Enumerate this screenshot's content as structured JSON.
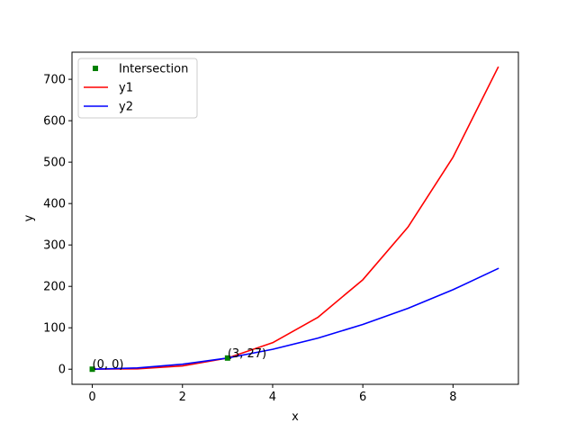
{
  "chart_data": {
    "type": "line",
    "title": "",
    "xlabel": "x",
    "ylabel": "y",
    "xlim": [
      -0.45,
      9.45
    ],
    "ylim": [
      -36.45,
      765.45
    ],
    "xticks": [
      0,
      2,
      4,
      6,
      8
    ],
    "yticks": [
      0,
      100,
      200,
      300,
      400,
      500,
      600,
      700
    ],
    "grid": false,
    "legend_position": "top-left",
    "x": [
      0,
      1,
      2,
      3,
      4,
      5,
      6,
      7,
      8,
      9
    ],
    "series": [
      {
        "name": "y1",
        "color": "#ff0000",
        "values": [
          0,
          1,
          8,
          27,
          64,
          125,
          216,
          343,
          512,
          729
        ]
      },
      {
        "name": "y2",
        "color": "#0000ff",
        "values": [
          0,
          3,
          12,
          27,
          48,
          75,
          108,
          147,
          192,
          243
        ]
      }
    ],
    "intersection": {
      "name": "Intersection",
      "color": "#008000",
      "points": [
        {
          "x": 0,
          "y": 0,
          "label": "(0, 0)"
        },
        {
          "x": 3,
          "y": 27,
          "label": "(3, 27)"
        }
      ]
    }
  }
}
